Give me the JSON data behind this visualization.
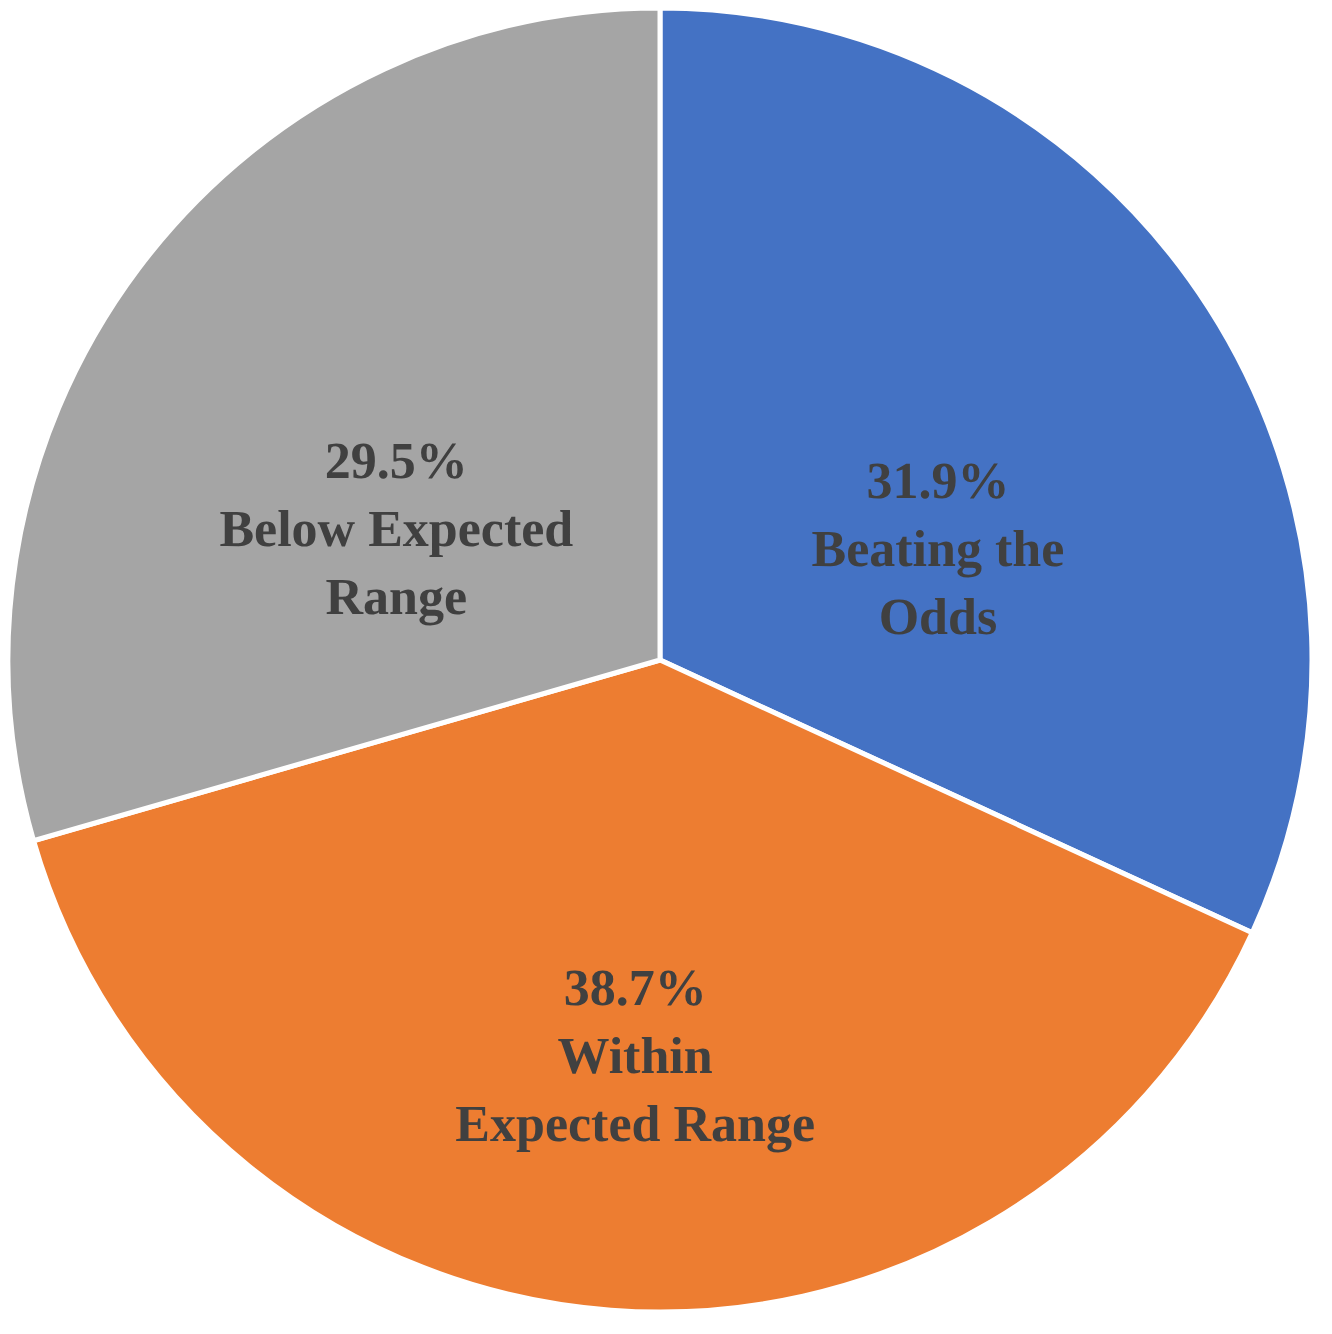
{
  "chart_data": {
    "type": "pie",
    "categories": [
      "Beating the Odds",
      "Within Expected Range",
      "Below Expected Range"
    ],
    "values": [
      31.9,
      38.7,
      29.5
    ],
    "colors": [
      "#4472c4",
      "#ed7d31",
      "#a5a5a5"
    ],
    "value_labels": [
      "31.9%",
      "38.7%",
      "29.5%"
    ]
  }
}
